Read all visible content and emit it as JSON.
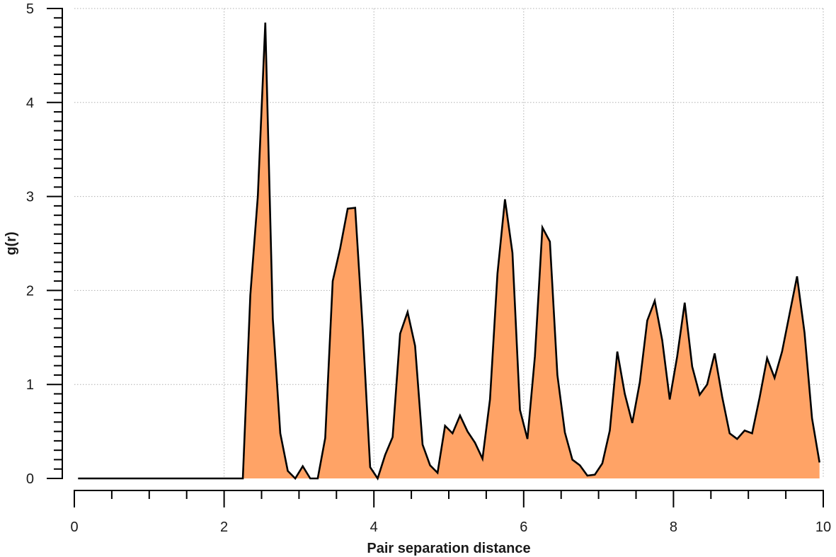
{
  "chart_data": {
    "type": "area",
    "xlabel": "Pair separation distance",
    "ylabel": "g(r)",
    "xlim": [
      0,
      10
    ],
    "ylim": [
      0,
      5
    ],
    "x_ticks": [
      "0",
      "2",
      "4",
      "6",
      "8",
      "10"
    ],
    "y_ticks": [
      "0",
      "1",
      "2",
      "3",
      "4",
      "5"
    ],
    "grid": true,
    "fill_color": "#ffa366",
    "line_color": "#000000",
    "series": [
      {
        "x": [
          0.05,
          0.15,
          0.25,
          0.35,
          0.45,
          0.55,
          0.65,
          0.75,
          0.85,
          0.95,
          1.05,
          1.15,
          1.25,
          1.35,
          1.45,
          1.55,
          1.65,
          1.75,
          1.85,
          1.95,
          2.05,
          2.15,
          2.25,
          2.35,
          2.45,
          2.55,
          2.65,
          2.75,
          2.85,
          2.95,
          3.05,
          3.15,
          3.25,
          3.35,
          3.45,
          3.55,
          3.65,
          3.75,
          3.85,
          3.95,
          4.05,
          4.15,
          4.25,
          4.35,
          4.45,
          4.55,
          4.65,
          4.75,
          4.85,
          4.95,
          5.05,
          5.15,
          5.25,
          5.35,
          5.45,
          5.55,
          5.65,
          5.75,
          5.85,
          5.95,
          6.05,
          6.15,
          6.25,
          6.35,
          6.45,
          6.55,
          6.65,
          6.75,
          6.85,
          6.95,
          7.05,
          7.15,
          7.25,
          7.35,
          7.45,
          7.55,
          7.65,
          7.75,
          7.85,
          7.95,
          8.05,
          8.15,
          8.25,
          8.35,
          8.45,
          8.55,
          8.65,
          8.75,
          8.85,
          8.95,
          9.05,
          9.15,
          9.25,
          9.35,
          9.45,
          9.55,
          9.65,
          9.75,
          9.85,
          9.95
        ],
        "y": [
          0,
          0,
          0,
          0,
          0,
          0,
          0,
          0,
          0,
          0,
          0,
          0,
          0,
          0,
          0,
          0,
          0,
          0,
          0,
          0,
          0,
          0,
          0,
          1.95,
          3.0,
          4.85,
          1.7,
          0.48,
          0.08,
          0.0,
          0.13,
          0.0,
          0.0,
          0.43,
          2.1,
          2.45,
          2.87,
          2.88,
          1.6,
          0.12,
          0.0,
          0.25,
          0.44,
          1.54,
          1.77,
          1.41,
          0.36,
          0.14,
          0.06,
          0.56,
          0.48,
          0.67,
          0.5,
          0.38,
          0.21,
          0.84,
          2.18,
          2.97,
          2.4,
          0.73,
          0.42,
          1.3,
          2.67,
          2.52,
          1.1,
          0.49,
          0.2,
          0.14,
          0.03,
          0.04,
          0.16,
          0.51,
          1.35,
          0.9,
          0.59,
          1.02,
          1.68,
          1.89,
          1.47,
          0.84,
          1.3,
          1.87,
          1.19,
          0.89,
          1.0,
          1.33,
          0.87,
          0.48,
          0.42,
          0.51,
          0.48,
          0.86,
          1.28,
          1.07,
          1.35,
          1.75,
          2.15,
          1.55,
          0.64,
          0.17
        ]
      }
    ]
  }
}
